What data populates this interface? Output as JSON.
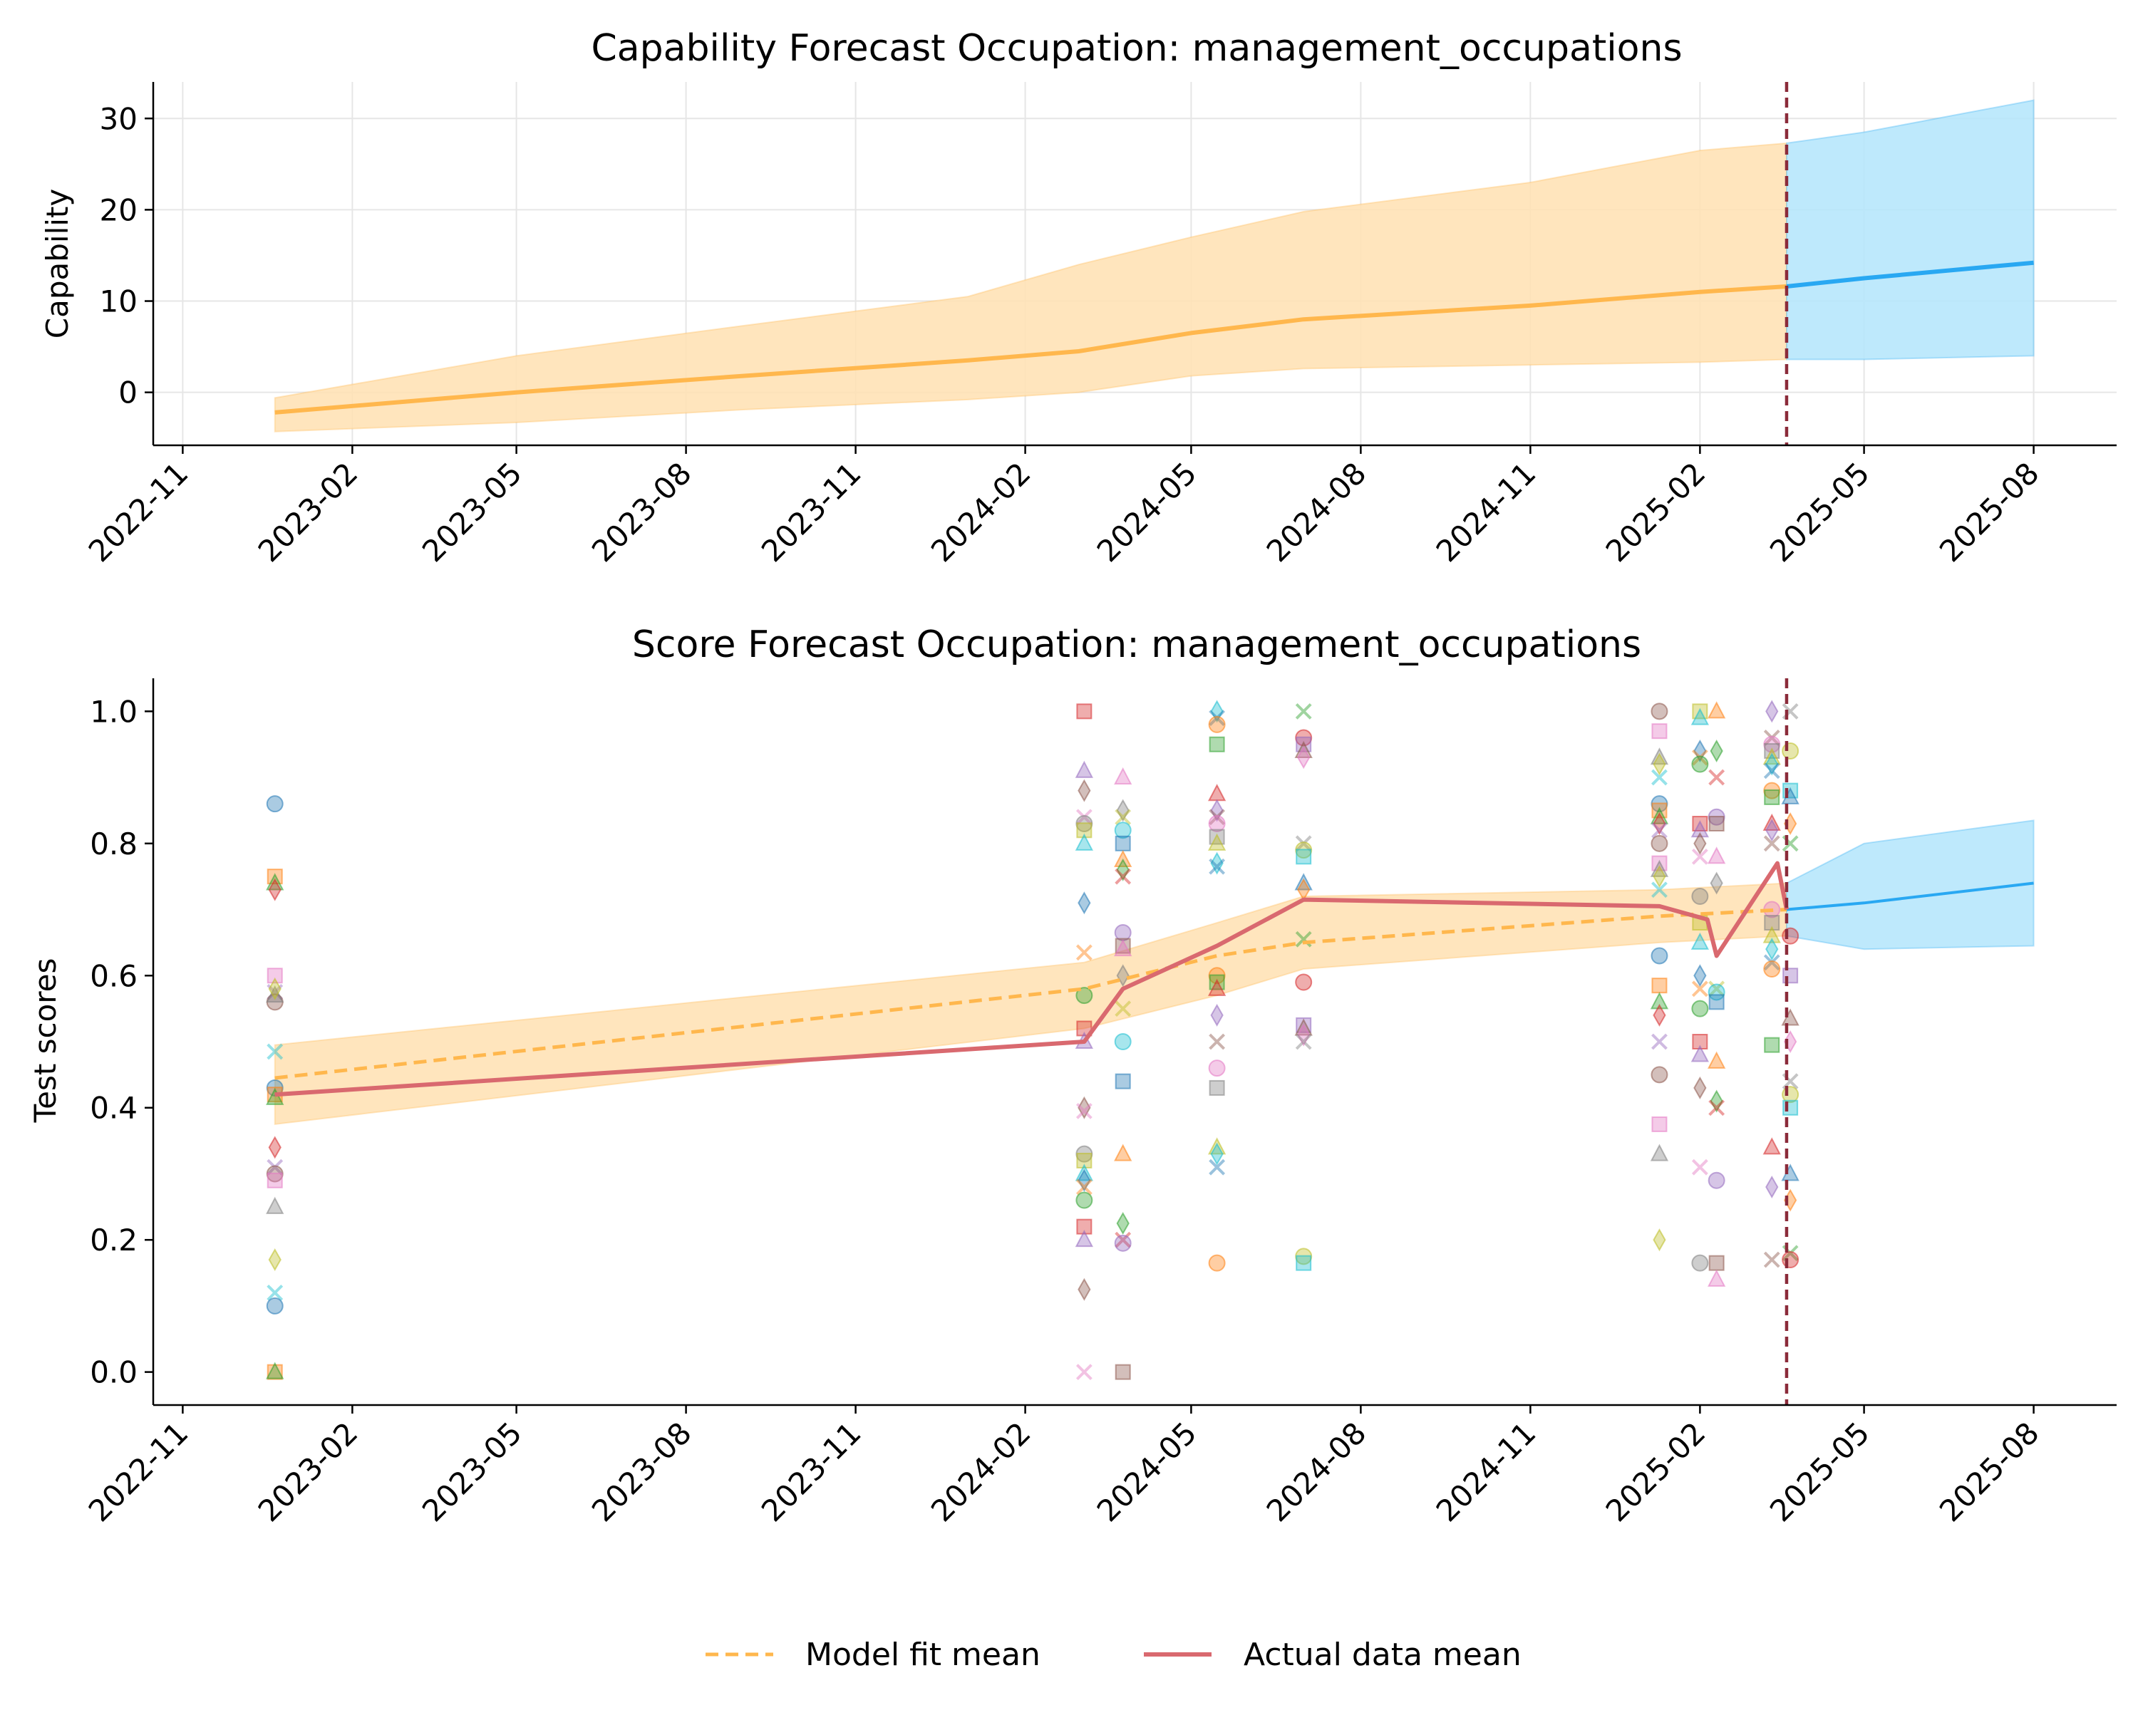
{
  "colors": {
    "fit": "#ffb74d",
    "fit_band": "#ffe0b2",
    "forecast": "#29a8f2",
    "forecast_band": "#b3e5fc",
    "actual": "#d9696f",
    "cutoff": "#8b2b3a",
    "grid": "#e6e6e6"
  },
  "chart_data": [
    {
      "type": "line",
      "title": "Capability Forecast Occupation: management_occupations",
      "xlabel": "",
      "ylabel": "Capability",
      "x_axis": "date",
      "xlim": [
        "2022-10-16",
        "2025-09-15"
      ],
      "ylim": [
        -5.8,
        34
      ],
      "grid": true,
      "x_ticks": [
        "2022-11",
        "2023-02",
        "2023-05",
        "2023-08",
        "2023-11",
        "2024-02",
        "2024-05",
        "2024-08",
        "2024-11",
        "2025-02",
        "2025-05",
        "2025-08"
      ],
      "y_ticks": [
        "0",
        "10",
        "20",
        "30"
      ],
      "forecast_start": "2025-03-20",
      "series": [
        {
          "role": "fit",
          "x": [
            "2022-12-21",
            "2023-05-01",
            "2023-09-01",
            "2024-01-01",
            "2024-03-01",
            "2024-05-01",
            "2024-07-01",
            "2024-11-01",
            "2025-02-01",
            "2025-03-20"
          ],
          "y": [
            -2.2,
            0.0,
            1.8,
            3.5,
            4.5,
            6.5,
            8.0,
            9.5,
            11.0,
            11.6
          ],
          "lower": [
            -4.3,
            -3.3,
            -1.9,
            -0.8,
            0.0,
            1.8,
            2.6,
            3.0,
            3.3,
            3.6
          ],
          "upper": [
            -0.6,
            4.0,
            7.3,
            10.5,
            14.0,
            17.0,
            19.8,
            23.0,
            26.5,
            27.3
          ]
        },
        {
          "role": "forecast",
          "x": [
            "2025-03-20",
            "2025-05-01",
            "2025-08-01"
          ],
          "y": [
            11.6,
            12.5,
            14.2
          ],
          "lower": [
            3.6,
            3.6,
            4.0
          ],
          "upper": [
            27.3,
            28.5,
            32.0
          ]
        }
      ]
    },
    {
      "type": "scatter",
      "title": "Score Forecast Occupation: management_occupations",
      "xlabel": "",
      "ylabel": "Test scores",
      "x_axis": "date",
      "xlim": [
        "2022-10-16",
        "2025-09-15"
      ],
      "ylim": [
        -0.05,
        1.05
      ],
      "grid": false,
      "x_ticks": [
        "2022-11",
        "2023-02",
        "2023-05",
        "2023-08",
        "2023-11",
        "2024-02",
        "2024-05",
        "2024-08",
        "2024-11",
        "2025-02",
        "2025-05",
        "2025-08"
      ],
      "y_ticks": [
        "0.0",
        "0.2",
        "0.4",
        "0.6",
        "0.8",
        "1.0"
      ],
      "forecast_start": "2025-03-20",
      "legend": {
        "position": "bottom-center",
        "entries": [
          {
            "label": "Model fit mean",
            "style": "dashed",
            "color": "#ffb74d"
          },
          {
            "label": "Actual data mean",
            "style": "solid",
            "color": "#d9696f"
          }
        ]
      },
      "model_fit": {
        "x": [
          "2022-12-21",
          "2024-03-04",
          "2024-05-15",
          "2024-07-01",
          "2025-01-10",
          "2025-03-20"
        ],
        "y": [
          0.445,
          0.58,
          0.63,
          0.65,
          0.69,
          0.7
        ],
        "lower": [
          0.375,
          0.52,
          0.57,
          0.61,
          0.65,
          0.66
        ],
        "upper": [
          0.495,
          0.62,
          0.68,
          0.72,
          0.73,
          0.74
        ]
      },
      "forecast": {
        "x": [
          "2025-03-20",
          "2025-05-01",
          "2025-08-01"
        ],
        "y": [
          0.7,
          0.71,
          0.74
        ],
        "lower": [
          0.66,
          0.64,
          0.645
        ],
        "upper": [
          0.74,
          0.8,
          0.835
        ]
      },
      "actual_mean": {
        "x": [
          "2022-12-21",
          "2024-03-04",
          "2024-03-25",
          "2024-05-15",
          "2024-07-01",
          "2025-01-10",
          "2025-02-05",
          "2025-02-10",
          "2025-03-15",
          "2025-03-20"
        ],
        "y": [
          0.42,
          0.5,
          0.58,
          0.645,
          0.715,
          0.705,
          0.685,
          0.63,
          0.77,
          0.7
        ]
      },
      "points": [
        {
          "date": "2022-12-21",
          "ys": [
            0.86,
            0.75,
            0.74,
            0.73,
            0.575,
            0.56,
            0.6,
            0.57,
            0.58,
            0.485,
            0.43,
            0.42,
            0.415,
            0.34,
            0.31,
            0.3,
            0.29,
            0.25,
            0.17,
            0.12,
            0.1,
            0.0,
            0.0
          ]
        },
        {
          "date": "2024-03-04",
          "ys": [
            1.0,
            0.91,
            0.88,
            0.84,
            0.83,
            0.82,
            0.8,
            0.71,
            0.635,
            0.57,
            0.52,
            0.5,
            0.4,
            0.395,
            0.33,
            0.32,
            0.3,
            0.29,
            0.28,
            0.26,
            0.22,
            0.2,
            0.125,
            0.0
          ]
        },
        {
          "date": "2024-03-25",
          "ys": [
            0.9,
            0.85,
            0.84,
            0.82,
            0.8,
            0.775,
            0.76,
            0.75,
            0.665,
            0.645,
            0.64,
            0.6,
            0.55,
            0.5,
            0.44,
            0.33,
            0.225,
            0.2,
            0.195,
            0.0
          ]
        },
        {
          "date": "2024-05-15",
          "ys": [
            1.0,
            0.99,
            0.98,
            0.95,
            0.875,
            0.85,
            0.84,
            0.83,
            0.81,
            0.8,
            0.77,
            0.765,
            0.6,
            0.59,
            0.58,
            0.54,
            0.5,
            0.46,
            0.43,
            0.34,
            0.33,
            0.31,
            0.165
          ]
        },
        {
          "date": "2024-07-01",
          "ys": [
            1.0,
            0.96,
            0.95,
            0.94,
            0.93,
            0.8,
            0.79,
            0.78,
            0.74,
            0.73,
            0.655,
            0.59,
            0.525,
            0.52,
            0.51,
            0.5,
            0.175,
            0.165
          ]
        },
        {
          "date": "2025-01-10",
          "ys": [
            1.0,
            0.97,
            0.93,
            0.92,
            0.9,
            0.86,
            0.85,
            0.84,
            0.83,
            0.82,
            0.8,
            0.77,
            0.76,
            0.75,
            0.73,
            0.63,
            0.585,
            0.56,
            0.54,
            0.5,
            0.45,
            0.375,
            0.33,
            0.2
          ]
        },
        {
          "date": "2025-02-01",
          "ys": [
            1.0,
            0.99,
            0.94,
            0.93,
            0.92,
            0.83,
            0.82,
            0.8,
            0.78,
            0.72,
            0.68,
            0.65,
            0.6,
            0.58,
            0.55,
            0.5,
            0.48,
            0.43,
            0.31,
            0.165
          ]
        },
        {
          "date": "2025-02-10",
          "ys": [
            1.0,
            0.94,
            0.9,
            0.84,
            0.83,
            0.78,
            0.74,
            0.58,
            0.575,
            0.56,
            0.47,
            0.41,
            0.4,
            0.29,
            0.165,
            0.14
          ]
        },
        {
          "date": "2025-03-12",
          "ys": [
            1.0,
            0.96,
            0.95,
            0.94,
            0.93,
            0.92,
            0.91,
            0.88,
            0.87,
            0.83,
            0.82,
            0.8,
            0.7,
            0.68,
            0.66,
            0.64,
            0.62,
            0.61,
            0.495,
            0.34,
            0.28,
            0.17
          ]
        },
        {
          "date": "2025-03-22",
          "ys": [
            1.0,
            0.94,
            0.88,
            0.87,
            0.83,
            0.8,
            0.66,
            0.6,
            0.535,
            0.5,
            0.44,
            0.42,
            0.4,
            0.3,
            0.26,
            0.18,
            0.17
          ]
        }
      ]
    }
  ]
}
